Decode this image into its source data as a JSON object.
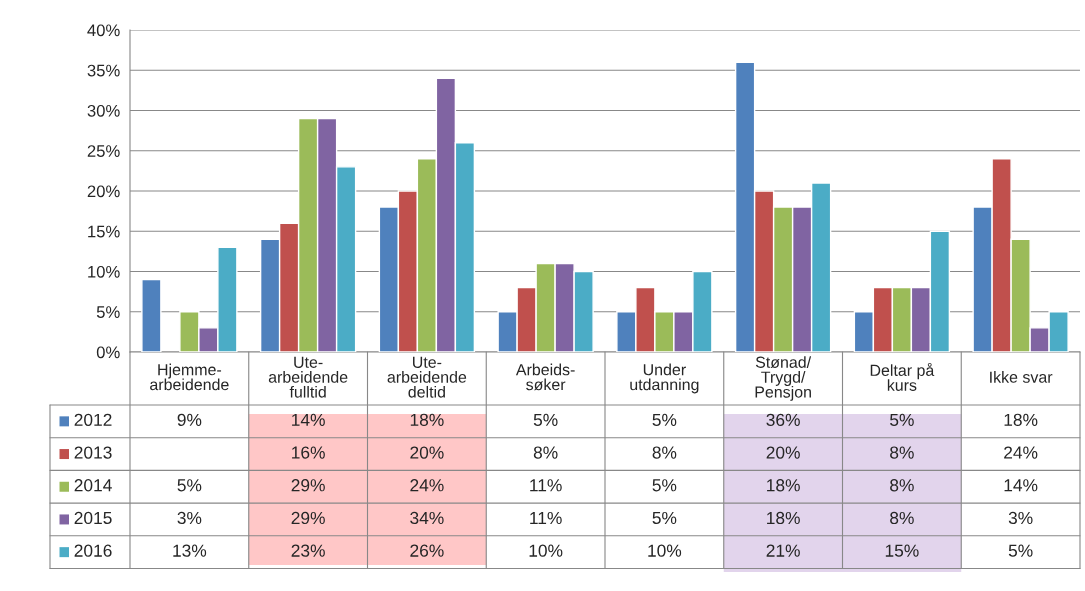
{
  "chart_data": {
    "type": "bar",
    "categories": [
      "Hjemme-\narbeidende",
      "Ute-\narbeidende\nfulltid",
      "Ute-\narbeidende\ndeltid",
      "Arbeids-\nsøker",
      "Under\nutdanning",
      "Stønad/\nTrygd/\nPensjon",
      "Deltar på\nkurs",
      "Ikke svar"
    ],
    "series": [
      {
        "name": "2012",
        "color": "#4f81bd",
        "values": [
          9,
          14,
          18,
          5,
          5,
          36,
          5,
          18
        ],
        "value_labels": [
          "9%",
          "14%",
          "18%",
          "5%",
          "5%",
          "36%",
          "5%",
          "18%"
        ]
      },
      {
        "name": "2013",
        "color": "#c0504d",
        "values": [
          null,
          16,
          20,
          8,
          8,
          20,
          8,
          24
        ],
        "value_labels": [
          null,
          "16%",
          "20%",
          "8%",
          "8%",
          "20%",
          "8%",
          "24%"
        ]
      },
      {
        "name": "2014",
        "color": "#9bbb59",
        "values": [
          5,
          29,
          24,
          11,
          5,
          18,
          8,
          14
        ],
        "value_labels": [
          "5%",
          "29%",
          "24%",
          "11%",
          "5%",
          "18%",
          "8%",
          "14%"
        ]
      },
      {
        "name": "2015",
        "color": "#8064a2",
        "values": [
          3,
          29,
          34,
          11,
          5,
          18,
          8,
          3
        ],
        "value_labels": [
          "3%",
          "29%",
          "34%",
          "11%",
          "5%",
          "18%",
          "8%",
          "3%"
        ]
      },
      {
        "name": "2016",
        "color": "#4bacc6",
        "values": [
          13,
          23,
          26,
          10,
          10,
          21,
          15,
          5
        ],
        "value_labels": [
          "13%",
          "23%",
          "26%",
          "10%",
          "10%",
          "21%",
          "15%",
          "5%"
        ]
      }
    ],
    "ylim": [
      0,
      40
    ],
    "yticks": [
      {
        "value": 0,
        "label": "0%"
      },
      {
        "value": 5,
        "label": "5%"
      },
      {
        "value": 10,
        "label": "10%"
      },
      {
        "value": 15,
        "label": "15%"
      },
      {
        "value": 20,
        "label": "20%"
      },
      {
        "value": 25,
        "label": "25%"
      },
      {
        "value": 30,
        "label": "30%"
      },
      {
        "value": 35,
        "label": "35%"
      },
      {
        "value": 40,
        "label": "40%"
      }
    ],
    "grid": "y",
    "legend": "bottom"
  }
}
